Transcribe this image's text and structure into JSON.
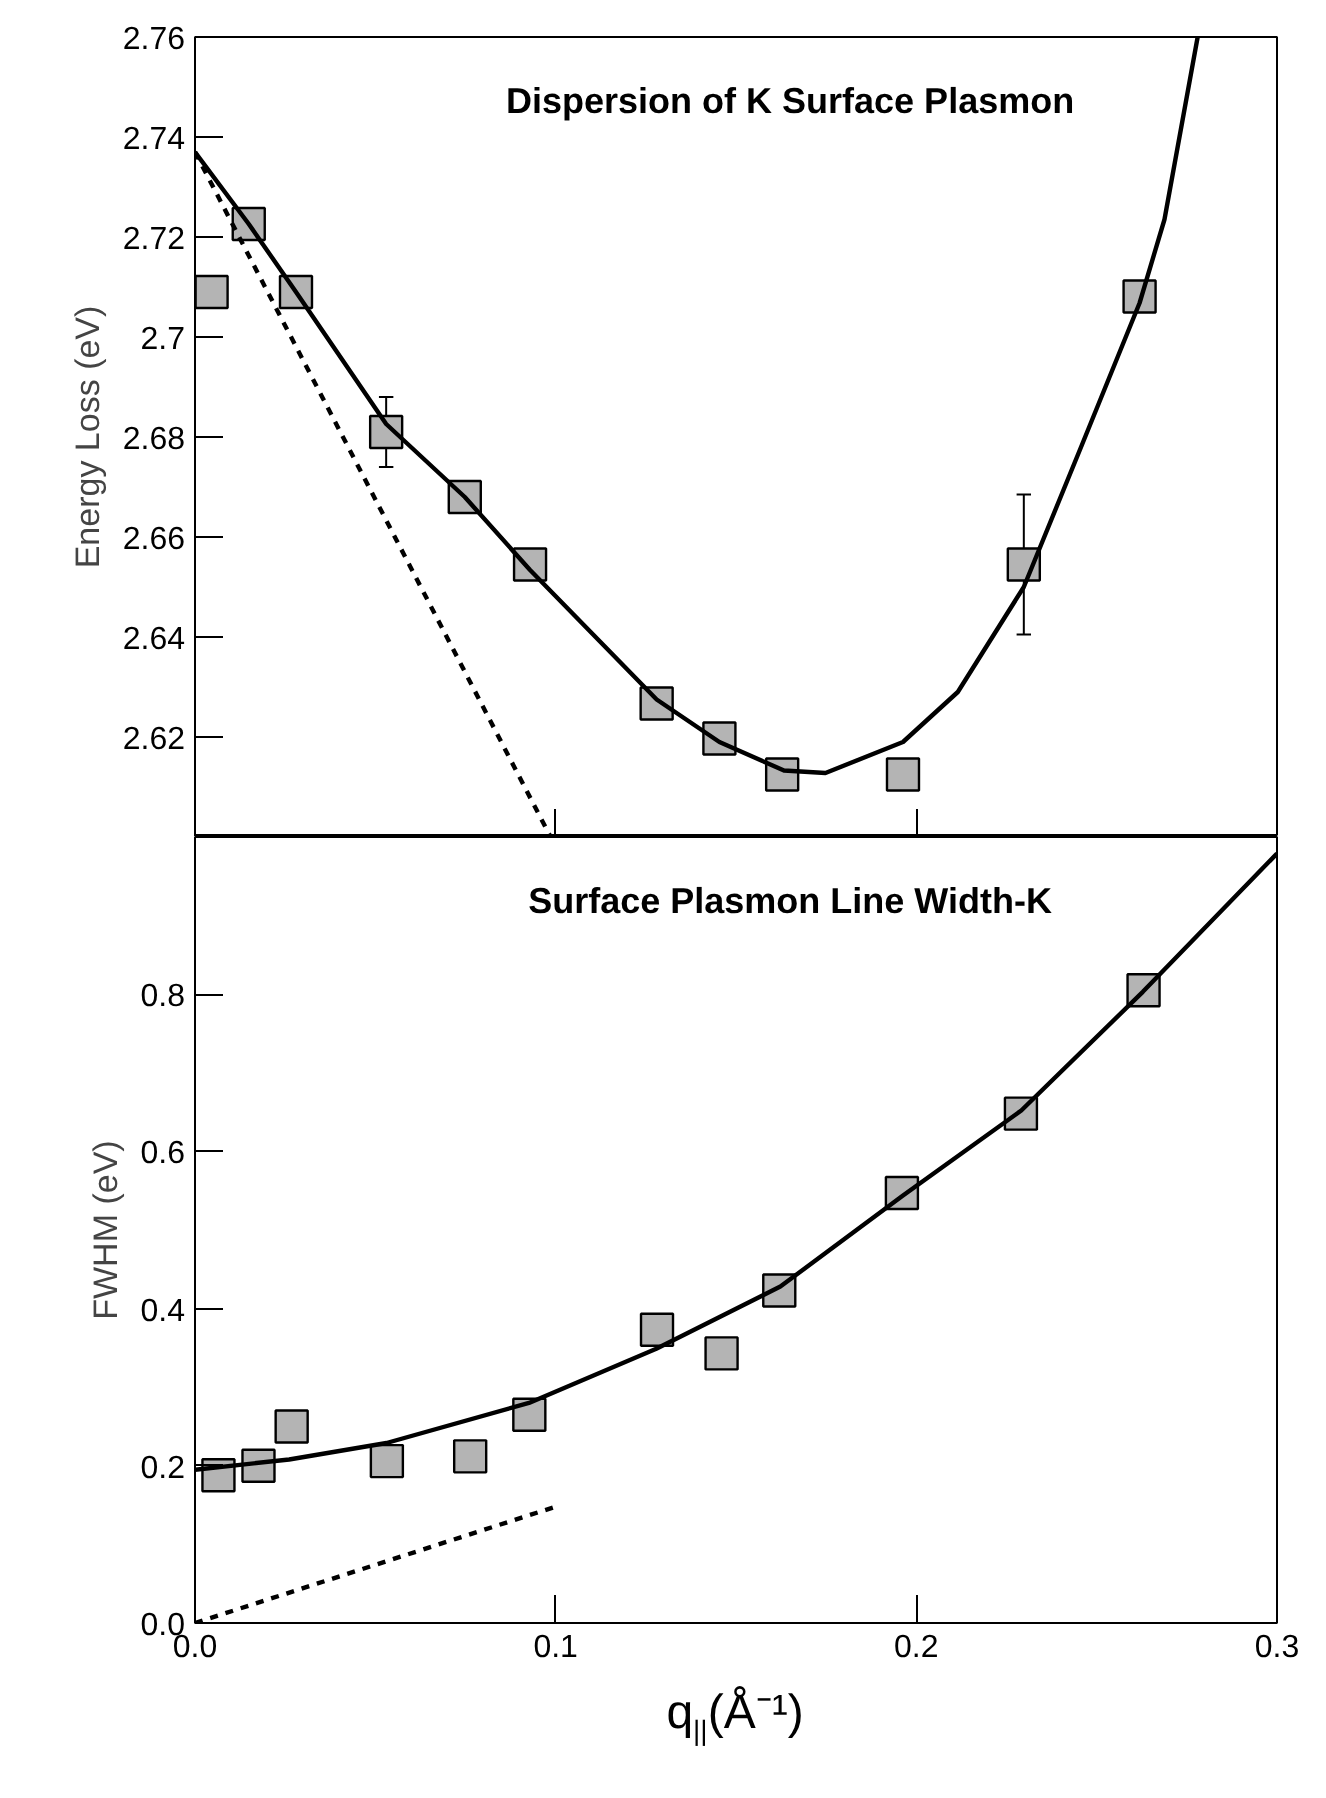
{
  "chart_data": [
    {
      "type": "scatter",
      "title": "Dispersion of K Surface Plasmon",
      "ylabel": "Energy Loss (eV)",
      "xlim": [
        0,
        0.3
      ],
      "ylim": [
        2.6,
        2.76
      ],
      "xticks": [
        {
          "value": 0.1,
          "label": null
        },
        {
          "value": 0.2,
          "label": null
        }
      ],
      "yticks": [
        2.62,
        2.64,
        2.66,
        2.68,
        2.7,
        2.72,
        2.74,
        2.76
      ],
      "tick_labels": "y",
      "grid": false,
      "series": [
        {
          "type": "scatter",
          "color": "#b4b4b4",
          "marker": "square",
          "x": [
            0.0046,
            0.0149,
            0.028,
            0.053,
            0.0748,
            0.0929,
            0.128,
            0.1454,
            0.1628,
            0.1963,
            0.2298,
            0.2619
          ],
          "values": [
            2.709,
            2.7226,
            2.709,
            2.681,
            2.668,
            2.6545,
            2.6267,
            2.6197,
            2.6125,
            2.6125,
            2.6545,
            2.7081
          ],
          "errors": [
            null,
            null,
            null,
            0.007,
            null,
            null,
            null,
            null,
            null,
            null,
            0.014,
            null
          ]
        },
        {
          "type": "line",
          "color": "#000000",
          "line_style": "solid",
          "marker": "none",
          "x": [
            0,
            0.0149,
            0.028,
            0.053,
            0.0748,
            0.0929,
            0.128,
            0.1454,
            0.1633,
            0.1748,
            0.1963,
            0.2115,
            0.2298,
            0.2459,
            0.2619,
            0.2688,
            0.278
          ],
          "values": [
            2.737,
            2.7226,
            2.709,
            2.6826,
            2.668,
            2.6534,
            2.6275,
            2.619,
            2.6133,
            2.6128,
            2.619,
            2.629,
            2.65,
            2.6784,
            2.7068,
            2.7235,
            2.76
          ]
        },
        {
          "type": "line",
          "color": "#000000",
          "line_style": "dashed",
          "marker": "none",
          "x": [
            0,
            0.0986
          ],
          "values": [
            2.737,
            2.6
          ]
        }
      ]
    },
    {
      "type": "scatter",
      "title": "Surface Plasmon Line Width-K",
      "ylabel": "FWHM (eV)",
      "xlabel": "q$_{||}$(Å⁻¹)",
      "xlim": [
        0,
        0.3
      ],
      "ylim": [
        0,
        1.0
      ],
      "xticks": [
        {
          "value": 0,
          "label": "0.0"
        },
        0.1,
        0.2,
        0.3
      ],
      "yticks": [
        {
          "value": 0,
          "label": "0.0"
        },
        0.2,
        0.4,
        0.6,
        0.8
      ],
      "grid": false,
      "series": [
        {
          "type": "scatter",
          "color": "#b4b4b4",
          "marker": "square",
          "x": [
            0.0065,
            0.0176,
            0.0268,
            0.0532,
            0.0763,
            0.0927,
            0.1281,
            0.146,
            0.162,
            0.196,
            0.229,
            0.263
          ],
          "values": [
            0.188,
            0.2,
            0.25,
            0.206,
            0.212,
            0.265,
            0.373,
            0.343,
            0.423,
            0.547,
            0.648,
            0.805
          ]
        },
        {
          "type": "line",
          "color": "#000000",
          "line_style": "solid",
          "marker": "none",
          "x": [
            0,
            0.0261,
            0.0531,
            0.0926,
            0.1279,
            0.1623,
            0.1963,
            0.2291,
            0.2628,
            0.3
          ],
          "values": [
            0.195,
            0.208,
            0.229,
            0.28,
            0.349,
            0.428,
            0.544,
            0.652,
            0.803,
            0.979
          ]
        },
        {
          "type": "line",
          "color": "#000000",
          "line_style": "dashed",
          "marker": "none",
          "x": [
            0,
            0.1
          ],
          "values": [
            0,
            0.148
          ]
        }
      ]
    }
  ]
}
